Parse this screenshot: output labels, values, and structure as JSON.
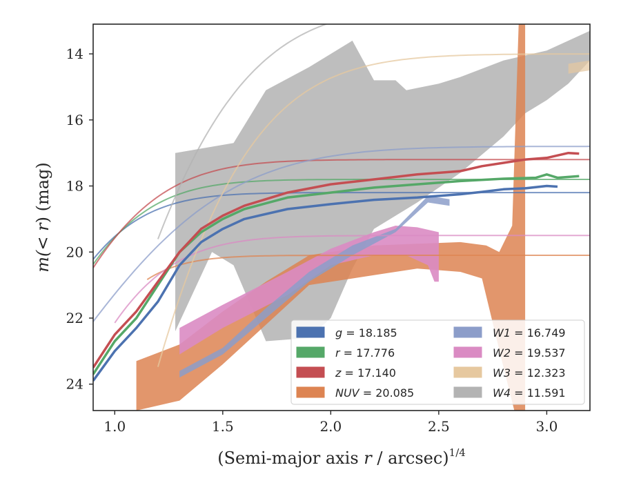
{
  "chart_data": {
    "type": "line",
    "xlabel_main": "(Semi-major axis ",
    "xlabel_var": "r",
    "xlabel_rest": " / arcsec)",
    "xlabel_sup": "1/4",
    "ylabel_main": "m(< ",
    "ylabel_var": "r",
    "ylabel_rest": ") (mag)",
    "xlim": [
      0.9,
      3.2
    ],
    "ylim": [
      24.8,
      13.1
    ],
    "y_inverted": true,
    "grid": false,
    "legend_position": "lower-right",
    "xticks": [
      1.0,
      1.5,
      2.0,
      2.5,
      3.0
    ],
    "xtick_labels": [
      "1.0",
      "1.5",
      "2.0",
      "2.5",
      "3.0"
    ],
    "yticks": [
      14,
      16,
      18,
      20,
      22,
      24
    ],
    "ytick_labels": [
      "14",
      "16",
      "18",
      "20",
      "22",
      "24"
    ],
    "series": [
      {
        "key": "g",
        "band": "g",
        "value": "18.185",
        "color": "#4c72b0",
        "curve": {
          "A": 18.2,
          "B": 12,
          "k": 2.2
        },
        "curve_range": [
          0.9,
          3.2
        ],
        "data": [
          [
            0.9,
            23.9
          ],
          [
            1.0,
            23.0
          ],
          [
            1.1,
            22.3
          ],
          [
            1.2,
            21.5
          ],
          [
            1.3,
            20.4
          ],
          [
            1.4,
            19.7
          ],
          [
            1.5,
            19.3
          ],
          [
            1.6,
            19.0
          ],
          [
            1.8,
            18.7
          ],
          [
            2.0,
            18.55
          ],
          [
            2.2,
            18.42
          ],
          [
            2.4,
            18.35
          ],
          [
            2.6,
            18.25
          ],
          [
            2.7,
            18.18
          ],
          [
            2.8,
            18.1
          ],
          [
            2.9,
            18.07
          ],
          [
            3.0,
            18.0
          ],
          [
            3.05,
            18.02
          ]
        ]
      },
      {
        "key": "r",
        "band": "r",
        "value": "17.776",
        "color": "#55a868",
        "curve": {
          "A": 17.8,
          "B": 13,
          "k": 2.0
        },
        "curve_range": [
          0.9,
          3.2
        ],
        "data": [
          [
            0.9,
            23.7
          ],
          [
            1.0,
            22.7
          ],
          [
            1.1,
            22.0
          ],
          [
            1.2,
            21.0
          ],
          [
            1.3,
            20.0
          ],
          [
            1.4,
            19.4
          ],
          [
            1.5,
            19.0
          ],
          [
            1.6,
            18.7
          ],
          [
            1.8,
            18.35
          ],
          [
            2.0,
            18.2
          ],
          [
            2.2,
            18.05
          ],
          [
            2.4,
            17.95
          ],
          [
            2.6,
            17.85
          ],
          [
            2.8,
            17.78
          ],
          [
            2.95,
            17.75
          ],
          [
            3.0,
            17.65
          ],
          [
            3.05,
            17.75
          ],
          [
            3.15,
            17.7
          ]
        ]
      },
      {
        "key": "z",
        "band": "z",
        "value": "17.140",
        "color": "#c44e52",
        "curve": {
          "A": 17.2,
          "B": 13,
          "k": 1.7
        },
        "curve_range": [
          0.9,
          3.2
        ],
        "data": [
          [
            0.9,
            23.5
          ],
          [
            1.0,
            22.5
          ],
          [
            1.1,
            21.8
          ],
          [
            1.2,
            20.9
          ],
          [
            1.3,
            20.0
          ],
          [
            1.4,
            19.3
          ],
          [
            1.5,
            18.9
          ],
          [
            1.6,
            18.6
          ],
          [
            1.8,
            18.2
          ],
          [
            2.0,
            17.95
          ],
          [
            2.2,
            17.8
          ],
          [
            2.4,
            17.65
          ],
          [
            2.6,
            17.55
          ],
          [
            2.7,
            17.4
          ],
          [
            2.8,
            17.3
          ],
          [
            2.9,
            17.2
          ],
          [
            3.0,
            17.15
          ],
          [
            3.1,
            17.0
          ],
          [
            3.15,
            17.02
          ]
        ]
      },
      {
        "key": "NUV",
        "band": "NUV",
        "value": "20.085",
        "color": "#dd8452",
        "curve": {
          "A": 20.1,
          "B": 20,
          "k": 2.5
        },
        "curve_range": [
          1.15,
          3.2
        ],
        "band_upper": [
          [
            1.1,
            23.3
          ],
          [
            1.3,
            22.8
          ],
          [
            1.5,
            21.8
          ],
          [
            1.7,
            20.9
          ],
          [
            1.9,
            20.1
          ],
          [
            2.2,
            19.8
          ],
          [
            2.4,
            19.75
          ],
          [
            2.6,
            19.7
          ],
          [
            2.72,
            19.8
          ],
          [
            2.78,
            20.0
          ],
          [
            2.84,
            19.2
          ],
          [
            2.87,
            13.1
          ],
          [
            2.88,
            13.1
          ],
          [
            2.9,
            13.1
          ]
        ],
        "band_lower": [
          [
            1.1,
            24.8
          ],
          [
            1.3,
            24.5
          ],
          [
            1.5,
            23.4
          ],
          [
            1.7,
            22.2
          ],
          [
            1.9,
            21.0
          ],
          [
            2.2,
            20.7
          ],
          [
            2.4,
            20.5
          ],
          [
            2.6,
            20.6
          ],
          [
            2.7,
            20.8
          ],
          [
            2.8,
            23.5
          ],
          [
            2.85,
            24.8
          ],
          [
            2.88,
            24.8
          ],
          [
            2.9,
            24.8
          ]
        ]
      },
      {
        "key": "W1",
        "band": "W1",
        "value": "16.749",
        "color": "#8c9dc9",
        "curve": {
          "A": 16.8,
          "B": 11,
          "k": 0.9
        },
        "curve_range": [
          0.9,
          3.2
        ],
        "band_upper": [
          [
            1.3,
            23.6
          ],
          [
            1.5,
            22.9
          ],
          [
            1.7,
            21.7
          ],
          [
            1.9,
            20.6
          ],
          [
            2.1,
            19.8
          ],
          [
            2.3,
            19.3
          ],
          [
            2.45,
            18.3
          ],
          [
            2.55,
            18.4
          ]
        ],
        "band_lower": [
          [
            1.3,
            23.8
          ],
          [
            1.5,
            23.1
          ],
          [
            1.7,
            22.0
          ],
          [
            1.9,
            20.9
          ],
          [
            2.1,
            20.1
          ],
          [
            2.3,
            19.4
          ],
          [
            2.45,
            18.5
          ],
          [
            2.55,
            18.6
          ]
        ]
      },
      {
        "key": "W2",
        "band": "W2",
        "value": "19.537",
        "color": "#da8bc3",
        "curve": {
          "A": 19.5,
          "B": 16,
          "k": 1.8
        },
        "curve_range": [
          1.0,
          3.2
        ],
        "band_upper": [
          [
            1.3,
            22.3
          ],
          [
            1.5,
            21.6
          ],
          [
            1.8,
            20.6
          ],
          [
            2.0,
            19.9
          ],
          [
            2.2,
            19.4
          ],
          [
            2.3,
            19.2
          ],
          [
            2.4,
            19.25
          ],
          [
            2.5,
            19.4
          ]
        ],
        "band_lower": [
          [
            1.3,
            23.1
          ],
          [
            1.5,
            22.3
          ],
          [
            1.8,
            21.3
          ],
          [
            2.0,
            20.4
          ],
          [
            2.2,
            20.1
          ],
          [
            2.35,
            20.1
          ],
          [
            2.45,
            20.4
          ],
          [
            2.48,
            20.9
          ],
          [
            2.5,
            20.9
          ]
        ]
      },
      {
        "key": "W3",
        "band": "W3",
        "value": "12.323",
        "color": "#e6c89f",
        "curve": {
          "A": 14.0,
          "B": 40,
          "k": 1.0
        },
        "curve_range": [
          1.2,
          3.2
        ],
        "band_upper": [
          [
            3.1,
            14.3
          ],
          [
            3.2,
            14.2
          ]
        ],
        "band_lower": [
          [
            3.1,
            14.6
          ],
          [
            3.2,
            14.5
          ]
        ]
      },
      {
        "key": "W4",
        "band": "W4",
        "value": "11.591",
        "color": "#b3b3b3",
        "curve": {
          "A": 12.5,
          "B": 30,
          "k": 1.0
        },
        "curve_range": [
          1.2,
          3.2
        ],
        "band_upper": [
          [
            1.28,
            17.0
          ],
          [
            1.55,
            16.7
          ],
          [
            1.7,
            15.1
          ],
          [
            1.9,
            14.4
          ],
          [
            2.1,
            13.6
          ],
          [
            2.2,
            14.8
          ],
          [
            2.3,
            14.8
          ],
          [
            2.35,
            15.1
          ],
          [
            2.5,
            14.9
          ],
          [
            2.6,
            14.7
          ],
          [
            2.8,
            14.2
          ],
          [
            3.0,
            13.9
          ],
          [
            3.2,
            13.3
          ]
        ],
        "band_lower": [
          [
            1.28,
            22.4
          ],
          [
            1.45,
            20.0
          ],
          [
            1.55,
            20.4
          ],
          [
            1.7,
            22.7
          ],
          [
            1.9,
            22.6
          ],
          [
            2.0,
            22.0
          ],
          [
            2.1,
            20.5
          ],
          [
            2.2,
            19.3
          ],
          [
            2.4,
            18.5
          ],
          [
            2.6,
            17.6
          ],
          [
            2.8,
            16.5
          ],
          [
            2.9,
            15.8
          ],
          [
            3.0,
            15.4
          ],
          [
            3.1,
            14.9
          ],
          [
            3.2,
            14.2
          ]
        ]
      }
    ],
    "legend_entries": [
      {
        "key": "g",
        "label_var": "g",
        "label_rest": " = 18.185",
        "color": "#4c72b0"
      },
      {
        "key": "W1",
        "label_var": "W1",
        "label_rest": " = 16.749",
        "color": "#8c9dc9"
      },
      {
        "key": "r",
        "label_var": "r",
        "label_rest": " = 17.776",
        "color": "#55a868"
      },
      {
        "key": "W2",
        "label_var": "W2",
        "label_rest": " = 19.537",
        "color": "#da8bc3"
      },
      {
        "key": "z",
        "label_var": "z",
        "label_rest": " = 17.140",
        "color": "#c44e52"
      },
      {
        "key": "W3",
        "label_var": "W3",
        "label_rest": " = 12.323",
        "color": "#e6c89f"
      },
      {
        "key": "NUV",
        "label_var": "NUV",
        "label_rest": " = 20.085",
        "color": "#dd8452"
      },
      {
        "key": "W4",
        "label_var": "W4",
        "label_rest": " = 11.591",
        "color": "#b3b3b3"
      }
    ]
  }
}
